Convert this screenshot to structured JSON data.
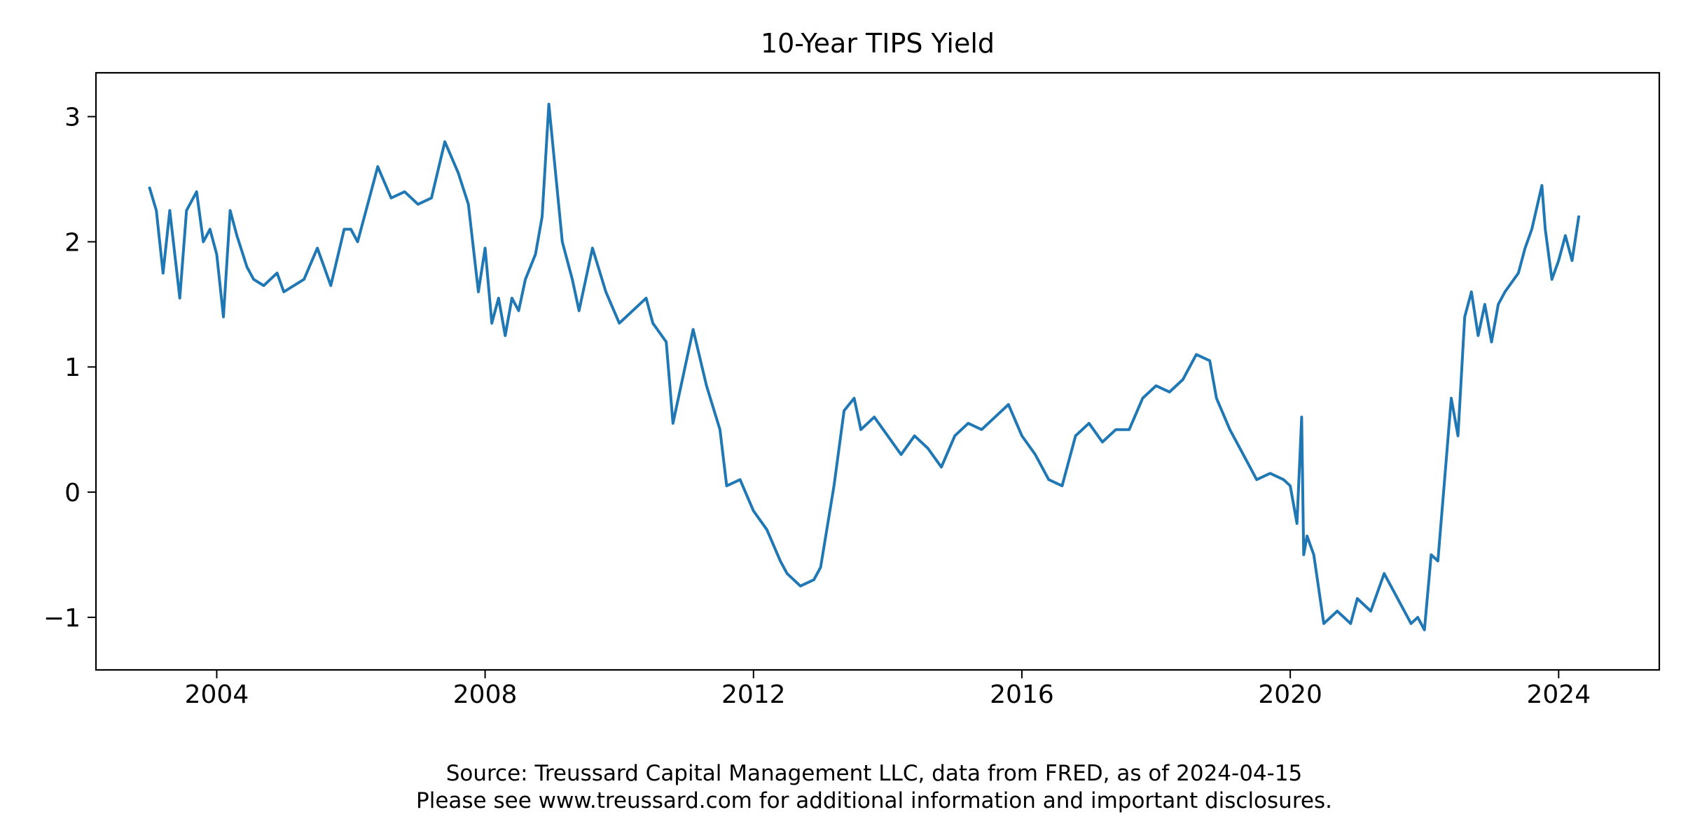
{
  "chart_data": {
    "type": "line",
    "title": "10-Year TIPS Yield",
    "xlabel": "",
    "ylabel": "",
    "xlim": [
      2002.2,
      2025.5
    ],
    "ylim": [
      -1.42,
      3.35
    ],
    "x_ticks": [
      2004,
      2008,
      2012,
      2016,
      2020,
      2024
    ],
    "x_tick_labels": [
      "2004",
      "2008",
      "2012",
      "2016",
      "2020",
      "2024"
    ],
    "y_ticks": [
      3,
      2,
      1,
      0,
      -1
    ],
    "y_tick_labels": [
      "3",
      "2",
      "1",
      "0",
      "−1"
    ],
    "grid": false,
    "legend": "none",
    "series": [
      {
        "color": "#1f77b4",
        "x": [
          2003.0,
          2003.1,
          2003.2,
          2003.3,
          2003.45,
          2003.55,
          2003.7,
          2003.8,
          2003.9,
          2004.0,
          2004.1,
          2004.2,
          2004.3,
          2004.45,
          2004.55,
          2004.7,
          2004.9,
          2005.0,
          2005.3,
          2005.5,
          2005.7,
          2005.9,
          2006.0,
          2006.1,
          2006.3,
          2006.4,
          2006.6,
          2006.8,
          2007.0,
          2007.2,
          2007.4,
          2007.6,
          2007.75,
          2007.9,
          2008.0,
          2008.1,
          2008.2,
          2008.3,
          2008.4,
          2008.5,
          2008.6,
          2008.75,
          2008.85,
          2008.95,
          2009.05,
          2009.15,
          2009.3,
          2009.4,
          2009.6,
          2009.8,
          2010.0,
          2010.2,
          2010.4,
          2010.5,
          2010.7,
          2010.8,
          2011.0,
          2011.1,
          2011.3,
          2011.5,
          2011.6,
          2011.8,
          2012.0,
          2012.2,
          2012.4,
          2012.5,
          2012.7,
          2012.9,
          2013.0,
          2013.2,
          2013.35,
          2013.5,
          2013.6,
          2013.8,
          2014.0,
          2014.2,
          2014.4,
          2014.6,
          2014.8,
          2015.0,
          2015.2,
          2015.4,
          2015.6,
          2015.8,
          2016.0,
          2016.2,
          2016.4,
          2016.6,
          2016.8,
          2017.0,
          2017.2,
          2017.4,
          2017.6,
          2017.8,
          2018.0,
          2018.2,
          2018.4,
          2018.6,
          2018.8,
          2018.9,
          2019.1,
          2019.3,
          2019.5,
          2019.7,
          2019.9,
          2020.0,
          2020.1,
          2020.17,
          2020.2,
          2020.25,
          2020.35,
          2020.5,
          2020.7,
          2020.9,
          2021.0,
          2021.2,
          2021.4,
          2021.6,
          2021.8,
          2021.9,
          2022.0,
          2022.1,
          2022.2,
          2022.3,
          2022.4,
          2022.5,
          2022.6,
          2022.7,
          2022.8,
          2022.9,
          2023.0,
          2023.1,
          2023.2,
          2023.4,
          2023.5,
          2023.6,
          2023.75,
          2023.8,
          2023.9,
          2024.0,
          2024.1,
          2024.2,
          2024.3
        ],
        "y": [
          2.43,
          2.25,
          1.75,
          2.25,
          1.55,
          2.25,
          2.4,
          2.0,
          2.1,
          1.9,
          1.4,
          2.25,
          2.05,
          1.8,
          1.7,
          1.65,
          1.75,
          1.6,
          1.7,
          1.95,
          1.65,
          2.1,
          2.1,
          2.0,
          2.4,
          2.6,
          2.35,
          2.4,
          2.3,
          2.35,
          2.8,
          2.55,
          2.3,
          1.6,
          1.95,
          1.35,
          1.55,
          1.25,
          1.55,
          1.45,
          1.7,
          1.9,
          2.2,
          3.1,
          2.55,
          2.0,
          1.7,
          1.45,
          1.95,
          1.6,
          1.35,
          1.45,
          1.55,
          1.35,
          1.2,
          0.55,
          1.05,
          1.3,
          0.85,
          0.5,
          0.05,
          0.1,
          -0.15,
          -0.3,
          -0.55,
          -0.65,
          -0.75,
          -0.7,
          -0.6,
          0.05,
          0.65,
          0.75,
          0.5,
          0.6,
          0.45,
          0.3,
          0.45,
          0.35,
          0.2,
          0.45,
          0.55,
          0.5,
          0.6,
          0.7,
          0.45,
          0.3,
          0.1,
          0.05,
          0.45,
          0.55,
          0.4,
          0.5,
          0.5,
          0.75,
          0.85,
          0.8,
          0.9,
          1.1,
          1.05,
          0.75,
          0.5,
          0.3,
          0.1,
          0.15,
          0.1,
          0.05,
          -0.25,
          0.6,
          -0.5,
          -0.35,
          -0.5,
          -1.05,
          -0.95,
          -1.05,
          -0.85,
          -0.95,
          -0.65,
          -0.85,
          -1.05,
          -1.0,
          -1.1,
          -0.5,
          -0.55,
          0.1,
          0.75,
          0.45,
          1.4,
          1.6,
          1.25,
          1.5,
          1.2,
          1.5,
          1.6,
          1.75,
          1.95,
          2.1,
          2.45,
          2.1,
          1.7,
          1.85,
          2.05,
          1.85,
          2.2
        ]
      }
    ]
  },
  "source_note": {
    "line1": "Source: Treussard Capital Management LLC, data from FRED, as of 2024-04-15",
    "line2": "Please see www.treussard.com for additional information and important disclosures."
  }
}
